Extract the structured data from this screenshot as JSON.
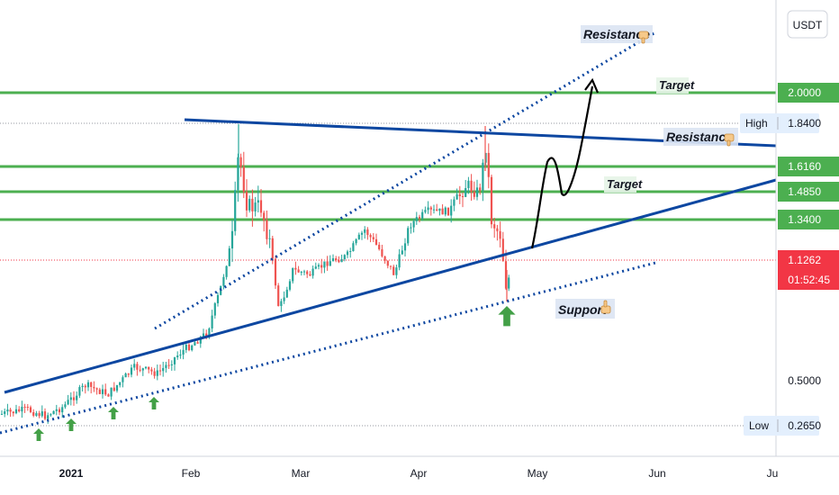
{
  "currency_button": {
    "label": "USDT"
  },
  "chart_data": {
    "type": "candlestick",
    "title": "",
    "x_axis": {
      "ticks": [
        "2021",
        "Feb",
        "Mar",
        "Apr",
        "May",
        "Jun",
        "Ju"
      ]
    },
    "y_axis": {
      "price_labels": [
        {
          "name": "target-2",
          "text": "2.0000",
          "value": 2.0,
          "style": "green"
        },
        {
          "name": "high",
          "text": "High  1.8400",
          "value": 1.84,
          "style": "info"
        },
        {
          "name": "level-1616",
          "text": "1.6160",
          "value": 1.616,
          "style": "green"
        },
        {
          "name": "level-1485",
          "text": "1.4850",
          "value": 1.485,
          "style": "green"
        },
        {
          "name": "level-1340",
          "text": "1.3400",
          "value": 1.34,
          "style": "green"
        },
        {
          "name": "current",
          "text": "1.1262",
          "value": 1.1262,
          "style": "red"
        },
        {
          "name": "tick-05",
          "text": "0.5000",
          "value": 0.5,
          "style": "plain"
        },
        {
          "name": "low",
          "text": "Low  0.2650",
          "value": 0.265,
          "style": "info"
        }
      ],
      "countdown": "01:52:45"
    },
    "horizontal_levels": [
      2.0,
      1.616,
      1.485,
      1.34
    ],
    "annotations": [
      {
        "name": "resistance-top",
        "text": "Resistance"
      },
      {
        "name": "resistance-mid",
        "text": "Resistance"
      },
      {
        "name": "target-top",
        "text": "Target"
      },
      {
        "name": "target-mid",
        "text": "Target"
      },
      {
        "name": "support",
        "text": "Support"
      }
    ],
    "colors": {
      "up": "#26a69a",
      "down": "#ef5350",
      "level": "#4caf50",
      "trend": "#0d47a1",
      "current": "#f23645",
      "support_arrow": "#43a047"
    }
  }
}
